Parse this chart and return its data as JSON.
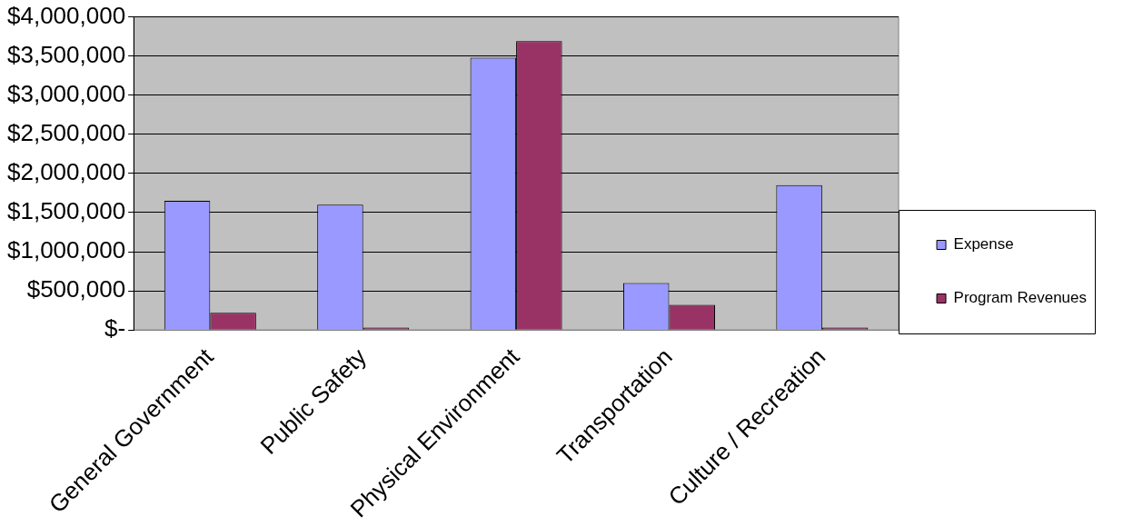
{
  "chart_data": {
    "type": "bar",
    "categories": [
      "General Government",
      "Public Safety",
      "Physical Environment",
      "Transportation",
      "Culture / Recreation"
    ],
    "series": [
      {
        "name": "Expense",
        "color": "#9999ff",
        "values": [
          1650000,
          1600000,
          3480000,
          600000,
          1850000
        ]
      },
      {
        "name": "Program Revenues",
        "color": "#993366",
        "values": [
          220000,
          30000,
          3690000,
          320000,
          30000
        ]
      }
    ],
    "ylim": [
      0,
      4000000
    ],
    "yticks": [
      {
        "value": 0,
        "label": "$-"
      },
      {
        "value": 500000,
        "label": "$500,000"
      },
      {
        "value": 1000000,
        "label": "$1,000,000"
      },
      {
        "value": 1500000,
        "label": "$1,500,000"
      },
      {
        "value": 2000000,
        "label": "$2,000,000"
      },
      {
        "value": 2500000,
        "label": "$2,500,000"
      },
      {
        "value": 3000000,
        "label": "$3,000,000"
      },
      {
        "value": 3500000,
        "label": "$3,500,000"
      },
      {
        "value": 4000000,
        "label": "$4,000,000"
      }
    ],
    "grid": "y",
    "legend": "right"
  }
}
